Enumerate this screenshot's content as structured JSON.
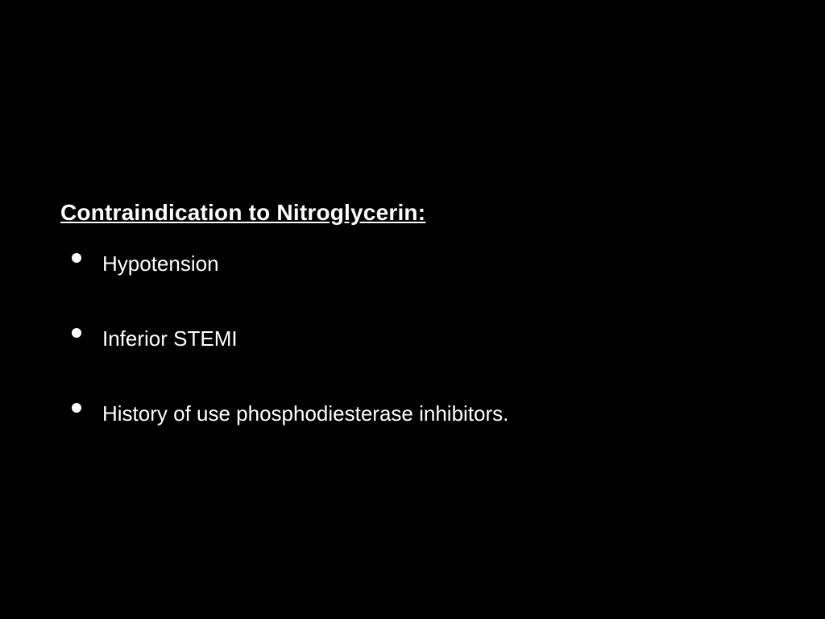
{
  "slide": {
    "background_color": "#000000",
    "text_color": "#ffffff",
    "heading": {
      "text": "Contraindication to Nitroglycerin:",
      "font_size": 28,
      "font_weight": "bold",
      "underline": true
    },
    "bullets": [
      {
        "text": "Hypotension"
      },
      {
        "text": "Inferior STEMI"
      },
      {
        "text": "History of use phosphodiesterase inhibitors."
      }
    ],
    "bullet_style": {
      "marker_color": "#ffffff",
      "marker_size": 12,
      "font_size": 26,
      "item_spacing": 62
    }
  }
}
